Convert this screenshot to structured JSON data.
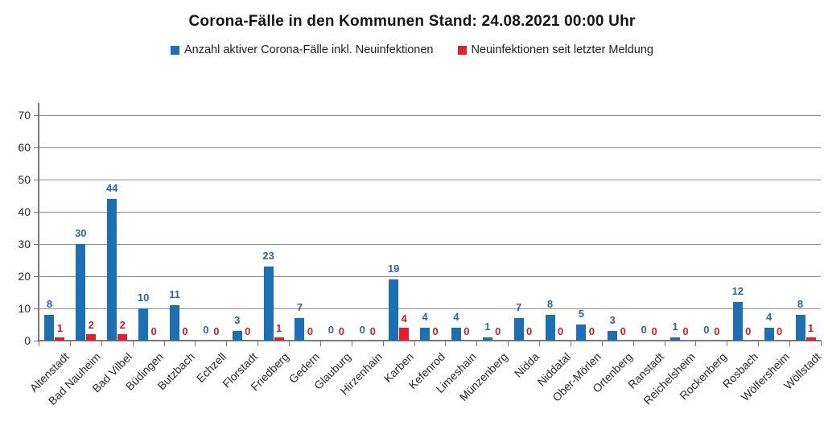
{
  "title": "Corona-Fälle in den Kommunen Stand: 24.08.2021 00:00 Uhr",
  "chart_data": {
    "type": "bar",
    "categories": [
      "Altenstadt",
      "Bad Nauheim",
      "Bad Vilbel",
      "Büdingen",
      "Butzbach",
      "Echzell",
      "Florstadt",
      "Friedberg",
      "Gedern",
      "Glauburg",
      "Hirzenhain",
      "Karben",
      "Kefenrod",
      "Limeshain",
      "Münzenberg",
      "Nidda",
      "Niddatal",
      "Ober-Mörlen",
      "Ortenberg",
      "Ranstadt",
      "Reichelsheim",
      "Rockenberg",
      "Rosbach",
      "Wölfersheim",
      "Wöllstadt"
    ],
    "series": [
      {
        "name": "Anzahl aktiver Corona-Fälle inkl. Neuinfektionen",
        "color": "#1a6fb5",
        "label_color": "#30689b",
        "values": [
          8,
          30,
          44,
          10,
          11,
          0,
          3,
          23,
          7,
          0,
          0,
          19,
          4,
          4,
          1,
          7,
          8,
          5,
          3,
          0,
          1,
          0,
          12,
          4,
          8
        ]
      },
      {
        "name": "Neuinfektionen seit letzter Meldung",
        "color": "#e61e25",
        "label_color": "#cf1b23",
        "values": [
          1,
          2,
          2,
          0,
          0,
          0,
          0,
          1,
          0,
          0,
          0,
          4,
          0,
          0,
          0,
          0,
          0,
          0,
          0,
          0,
          0,
          0,
          0,
          0,
          1
        ]
      }
    ],
    "xlabel": "",
    "ylabel": "",
    "ylim": [
      0,
      70
    ],
    "yticks": [
      0,
      10,
      20,
      30,
      40,
      50,
      60,
      70
    ],
    "grid": true,
    "legend_position": "top",
    "value_labels": true
  }
}
